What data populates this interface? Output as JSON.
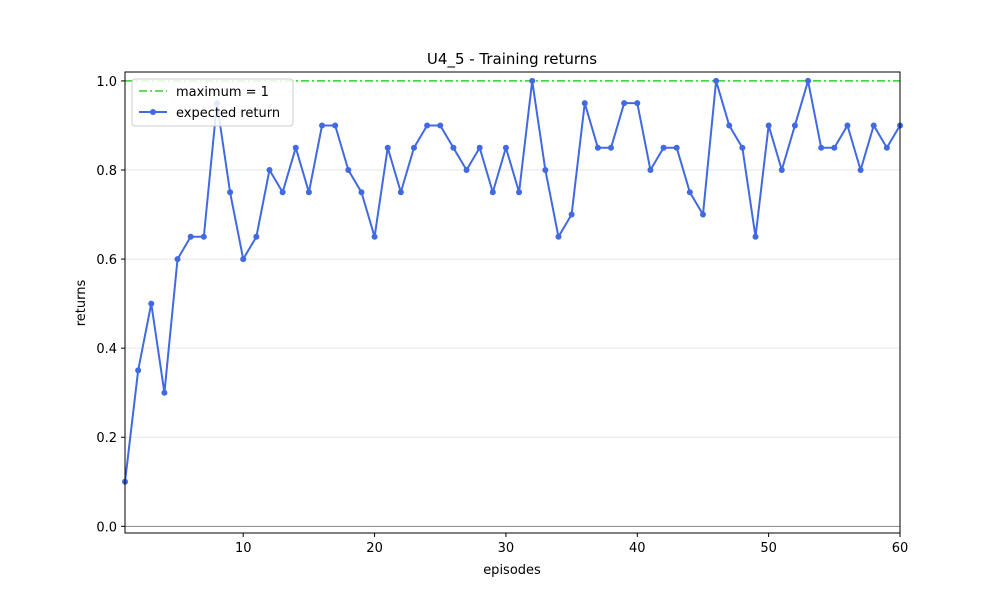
{
  "chart_data": {
    "type": "line",
    "title": "U4_5 - Training returns",
    "xlabel": "episodes",
    "ylabel": "returns",
    "xlim": [
      1,
      60
    ],
    "ylim": [
      -0.015,
      1.02
    ],
    "xticks": [
      10,
      20,
      30,
      40,
      50,
      60
    ],
    "yticks": [
      0.0,
      0.2,
      0.4,
      0.6,
      0.8,
      1.0
    ],
    "ytick_labels": [
      "0.0",
      "0.2",
      "0.4",
      "0.6",
      "0.8",
      "1.0"
    ],
    "grid": "horizontal",
    "legend_position": "top-left",
    "colors": {
      "series": "#4169e1",
      "maximum": "#32cd32",
      "grid": "#e6e6e6"
    },
    "maximum_line": {
      "name": "maximum = 1",
      "value": 1.0
    },
    "series": [
      {
        "name": "expected return",
        "x": [
          1,
          2,
          3,
          4,
          5,
          6,
          7,
          8,
          9,
          10,
          11,
          12,
          13,
          14,
          15,
          16,
          17,
          18,
          19,
          20,
          21,
          22,
          23,
          24,
          25,
          26,
          27,
          28,
          29,
          30,
          31,
          32,
          33,
          34,
          35,
          36,
          37,
          38,
          39,
          40,
          41,
          42,
          43,
          44,
          45,
          46,
          47,
          48,
          49,
          50,
          51,
          52,
          53,
          54,
          55,
          56,
          57,
          58,
          59,
          60
        ],
        "values": [
          0.1,
          0.35,
          0.5,
          0.3,
          0.6,
          0.65,
          0.65,
          0.95,
          0.75,
          0.6,
          0.65,
          0.8,
          0.75,
          0.85,
          0.75,
          0.9,
          0.9,
          0.8,
          0.75,
          0.65,
          0.85,
          0.75,
          0.85,
          0.9,
          0.9,
          0.85,
          0.8,
          0.85,
          0.75,
          0.85,
          0.75,
          1.0,
          0.8,
          0.65,
          0.7,
          0.95,
          0.85,
          0.85,
          0.95,
          0.95,
          0.8,
          0.85,
          0.85,
          0.75,
          0.7,
          1.0,
          0.9,
          0.85,
          0.65,
          0.9,
          0.8,
          0.9,
          1.0,
          0.85,
          0.85,
          0.9,
          0.8,
          0.9,
          0.85,
          0.9
        ]
      }
    ]
  }
}
